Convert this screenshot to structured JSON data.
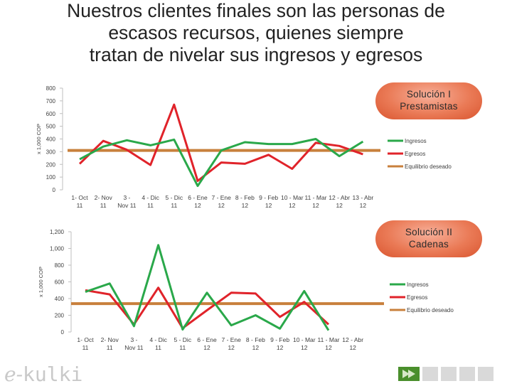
{
  "title": "Nuestros clientes finales son las personas de\nescasos recursos, quienes siempre\ntratan de nivelar sus ingresos y egresos",
  "logo": {
    "prefix": "e-",
    "name": "kulki"
  },
  "colors": {
    "ingresos": "#2aa84a",
    "egresos": "#e0232a",
    "equilibrio": "#c8803c",
    "callout": "#ea7a56"
  },
  "chart_data": [
    {
      "type": "line",
      "callout": "Solución I\nPrestamistas",
      "ylabel": "x 1,000 COP",
      "ylim": [
        0,
        800
      ],
      "yticks": [
        "0",
        "100",
        "200",
        "300",
        "400",
        "500",
        "600",
        "700",
        "800"
      ],
      "categories": [
        "1- Oct\n11",
        "2- Nov\n11",
        "3 -\nNov 11",
        "4 - Dic\n11",
        "5 - Dic\n11",
        "6 - Ene\n12",
        "7 - Ene\n12",
        "8 - Feb\n12",
        "9 - Feb\n12",
        "10 - Mar\n12",
        "11 - Mar\n12",
        "12 - Abr\n12",
        "13 - Abr\n12"
      ],
      "series": [
        {
          "name": "Ingresos",
          "values": [
            240,
            340,
            390,
            350,
            395,
            30,
            310,
            375,
            360,
            360,
            400,
            265,
            380
          ]
        },
        {
          "name": "Egresos",
          "values": [
            205,
            385,
            315,
            195,
            670,
            70,
            215,
            205,
            275,
            165,
            370,
            345,
            280
          ]
        },
        {
          "name": "Equilibrio deseado",
          "values": [
            310,
            310,
            310,
            310,
            310,
            310,
            310,
            310,
            310,
            310,
            310,
            310,
            310
          ]
        }
      ],
      "legend": "right",
      "grid": false
    },
    {
      "type": "line",
      "callout": "Solución II\nCadenas",
      "ylabel": "x 1,000 COP",
      "ylim": [
        0,
        1200
      ],
      "yticks": [
        "0",
        "200",
        "400",
        "600",
        "800",
        "1,000",
        "1,200"
      ],
      "categories": [
        "1- Oct\n11",
        "2- Nov\n11",
        "3 -\nNov 11",
        "4 - Dic\n11",
        "5 - Dic\n11",
        "6 - Ene\n12",
        "7 - Ene\n12",
        "8 - Feb\n12",
        "9 - Feb\n12",
        "10 - Mar\n12",
        "11 - Mar\n12",
        "12 - Abr\n12"
      ],
      "series": [
        {
          "name": "Ingresos",
          "values": [
            480,
            580,
            70,
            1040,
            30,
            470,
            80,
            200,
            40,
            490,
            20,
            null
          ]
        },
        {
          "name": "Egresos",
          "values": [
            500,
            450,
            90,
            530,
            45,
            260,
            470,
            460,
            180,
            360,
            90,
            null
          ]
        },
        {
          "name": "Equilibrio deseado",
          "values": [
            340,
            340,
            340,
            340,
            340,
            340,
            340,
            340,
            340,
            340,
            340,
            340
          ]
        }
      ],
      "legend": "right",
      "grid": false
    }
  ]
}
